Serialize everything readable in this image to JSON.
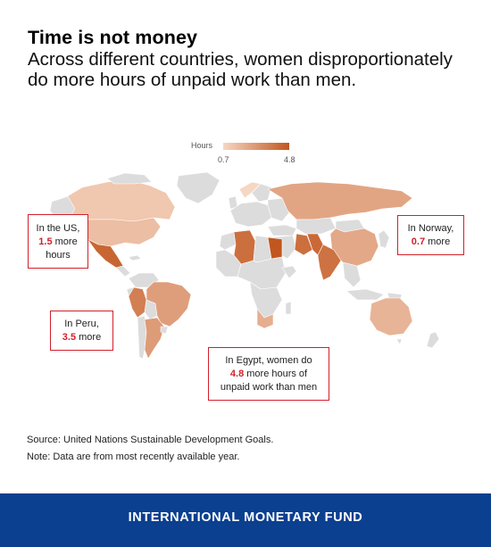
{
  "header": {
    "title": "Time is not money",
    "subtitle": "Across different countries, women disproportionately do more hours of unpaid work than men."
  },
  "legend": {
    "title": "Hours",
    "min_label": "0.7",
    "max_label": "4.8",
    "min_value": 0.7,
    "max_value": 4.8,
    "color_low": "#f6d7c3",
    "color_high": "#c2561f"
  },
  "map": {
    "no_data_color": "#dcdcdc",
    "countries": [
      {
        "name": "United States",
        "value": 1.5
      },
      {
        "name": "Canada",
        "value": 1.2
      },
      {
        "name": "Mexico",
        "value": 4.3
      },
      {
        "name": "Peru",
        "value": 3.5
      },
      {
        "name": "Brazil",
        "value": 2.5
      },
      {
        "name": "Argentina",
        "value": 2.6
      },
      {
        "name": "Norway",
        "value": 0.7
      },
      {
        "name": "Russia",
        "value": 2.3
      },
      {
        "name": "Algeria",
        "value": 4.0
      },
      {
        "name": "Egypt",
        "value": 4.8
      },
      {
        "name": "Iran",
        "value": 4.0
      },
      {
        "name": "Pakistan",
        "value": 4.2
      },
      {
        "name": "India",
        "value": 3.9
      },
      {
        "name": "China",
        "value": 2.2
      },
      {
        "name": "South Africa",
        "value": 2.0
      },
      {
        "name": "Australia",
        "value": 1.8
      }
    ]
  },
  "callouts": {
    "us": {
      "line1": "In the US,",
      "value": "1.5",
      "mid": " more",
      "line3": "hours"
    },
    "norway": {
      "line1": "In Norway,",
      "value": "0.7",
      "mid": " more"
    },
    "peru": {
      "line1": "In Peru,",
      "value": "3.5",
      "mid": " more"
    },
    "egypt": {
      "line1": "In Egypt, women do",
      "value": "4.8",
      "mid": " more hours of",
      "line3": "unpaid work than men"
    }
  },
  "footer": {
    "source": "Source: United Nations Sustainable Development Goals.",
    "note": "Note: Data are from most recently available year.",
    "org": "INTERNATIONAL MONETARY FUND"
  }
}
